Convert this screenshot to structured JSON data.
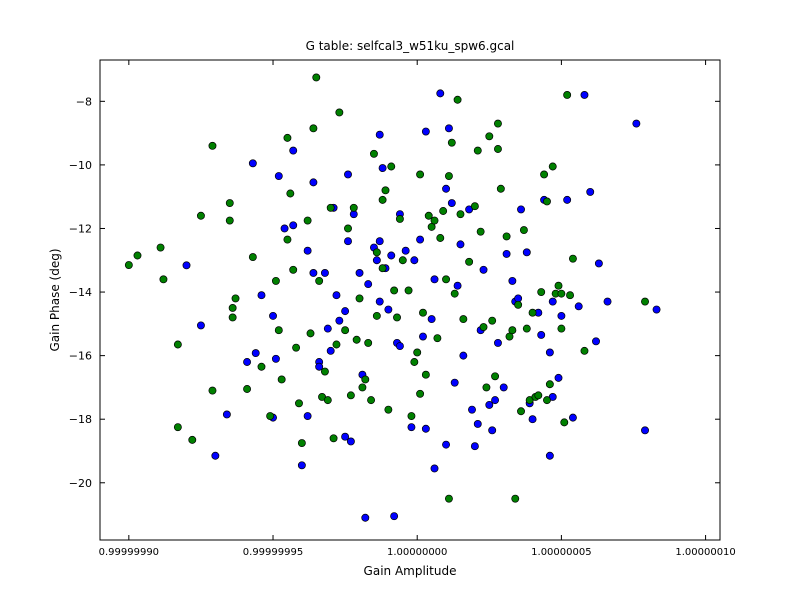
{
  "chart_data": {
    "type": "scatter",
    "title": "G table: selfcal3_w51ku_spw6.gcal",
    "xlabel": "Gain Amplitude",
    "ylabel": "Gain Phase (deg)",
    "xlim": [
      0.99999989,
      1.000000105
    ],
    "ylim": [
      -21.8,
      -6.7
    ],
    "x_ticks": [
      {
        "value": 0.9999999,
        "label": "0.99999990"
      },
      {
        "value": 0.99999995,
        "label": "0.99999995"
      },
      {
        "value": 1.0,
        "label": "1.00000000"
      },
      {
        "value": 1.00000005,
        "label": "1.00000005"
      },
      {
        "value": 1.0000001,
        "label": "1.00000010"
      }
    ],
    "y_ticks": [
      {
        "value": -20,
        "label": "−20"
      },
      {
        "value": -18,
        "label": "−18"
      },
      {
        "value": -16,
        "label": "−16"
      },
      {
        "value": -14,
        "label": "−14"
      },
      {
        "value": -12,
        "label": "−12"
      },
      {
        "value": -10,
        "label": "−10"
      },
      {
        "value": -8,
        "label": "−8"
      }
    ],
    "grid": false,
    "series": [
      {
        "color": "#0000ff",
        "points": [
          [
            0.99999992,
            -13.16
          ],
          [
            0.999999925,
            -15.05
          ],
          [
            0.99999993,
            -19.15
          ],
          [
            0.999999934,
            -17.85
          ],
          [
            0.999999943,
            -9.95
          ],
          [
            0.999999946,
            -14.1
          ],
          [
            0.999999944,
            -15.92
          ],
          [
            0.999999941,
            -16.2
          ],
          [
            0.99999995,
            -17.95
          ],
          [
            0.99999995,
            -14.75
          ],
          [
            0.999999951,
            -16.1
          ],
          [
            0.999999952,
            -10.35
          ],
          [
            0.999999954,
            -12.0
          ],
          [
            0.999999957,
            -11.9
          ],
          [
            0.999999957,
            -9.55
          ],
          [
            0.99999996,
            -19.45
          ],
          [
            0.999999962,
            -17.9
          ],
          [
            0.999999962,
            -12.7
          ],
          [
            0.999999964,
            -10.55
          ],
          [
            0.999999964,
            -13.4
          ],
          [
            0.999999966,
            -16.2
          ],
          [
            0.999999966,
            -16.35
          ],
          [
            0.999999968,
            -13.4
          ],
          [
            0.999999969,
            -15.15
          ],
          [
            0.99999997,
            -15.85
          ],
          [
            0.999999971,
            -11.35
          ],
          [
            0.999999972,
            -14.1
          ],
          [
            0.999999973,
            -14.9
          ],
          [
            0.999999975,
            -18.55
          ],
          [
            0.999999976,
            -10.3
          ],
          [
            0.999999976,
            -12.4
          ],
          [
            0.999999975,
            -14.6
          ],
          [
            0.999999977,
            -18.7
          ],
          [
            0.999999978,
            -11.55
          ],
          [
            0.99999998,
            -13.4
          ],
          [
            0.999999981,
            -16.6
          ],
          [
            0.999999982,
            -21.1
          ],
          [
            0.999999983,
            -13.75
          ],
          [
            0.999999985,
            -12.6
          ],
          [
            0.999999986,
            -13.0
          ],
          [
            0.999999987,
            -14.3
          ],
          [
            0.999999987,
            -9.05
          ],
          [
            0.999999987,
            -12.4
          ],
          [
            0.999999988,
            -10.1
          ],
          [
            0.999999989,
            -13.25
          ],
          [
            0.99999999,
            -14.55
          ],
          [
            0.999999991,
            -12.85
          ],
          [
            0.999999992,
            -21.05
          ],
          [
            0.999999993,
            -15.6
          ],
          [
            0.999999994,
            -15.7
          ],
          [
            0.999999994,
            -11.55
          ],
          [
            0.999999996,
            -12.7
          ],
          [
            0.999999998,
            -18.25
          ],
          [
            0.999999999,
            -13.0
          ],
          [
            1.000000001,
            -12.35
          ],
          [
            1.000000002,
            -15.4
          ],
          [
            1.000000003,
            -18.3
          ],
          [
            1.000000003,
            -8.95
          ],
          [
            1.000000005,
            -14.85
          ],
          [
            1.000000006,
            -19.55
          ],
          [
            1.000000006,
            -13.6
          ],
          [
            1.000000008,
            -7.75
          ],
          [
            1.00000001,
            -18.8
          ],
          [
            1.00000001,
            -10.75
          ],
          [
            1.000000011,
            -8.85
          ],
          [
            1.000000012,
            -11.2
          ],
          [
            1.000000013,
            -16.85
          ],
          [
            1.000000014,
            -13.8
          ],
          [
            1.000000015,
            -12.5
          ],
          [
            1.000000016,
            -16.0
          ],
          [
            1.000000018,
            -11.4
          ],
          [
            1.000000019,
            -17.7
          ],
          [
            1.00000002,
            -18.85
          ],
          [
            1.000000021,
            -18.15
          ],
          [
            1.000000022,
            -15.2
          ],
          [
            1.000000023,
            -13.3
          ],
          [
            1.000000025,
            -17.55
          ],
          [
            1.000000026,
            -18.35
          ],
          [
            1.000000027,
            -17.4
          ],
          [
            1.000000028,
            -15.6
          ],
          [
            1.00000003,
            -17.0
          ],
          [
            1.000000031,
            -12.8
          ],
          [
            1.000000033,
            -13.65
          ],
          [
            1.000000034,
            -14.3
          ],
          [
            1.000000035,
            -14.2
          ],
          [
            1.000000036,
            -11.4
          ],
          [
            1.000000038,
            -12.75
          ],
          [
            1.000000039,
            -17.5
          ],
          [
            1.00000004,
            -18.0
          ],
          [
            1.000000042,
            -14.65
          ],
          [
            1.000000043,
            -15.35
          ],
          [
            1.000000044,
            -11.1
          ],
          [
            1.000000046,
            -19.15
          ],
          [
            1.000000046,
            -15.9
          ],
          [
            1.000000047,
            -17.3
          ],
          [
            1.000000047,
            -14.3
          ],
          [
            1.000000049,
            -16.7
          ],
          [
            1.00000005,
            -14.75
          ],
          [
            1.000000052,
            -11.1
          ],
          [
            1.000000054,
            -17.95
          ],
          [
            1.000000056,
            -14.45
          ],
          [
            1.000000058,
            -7.8
          ],
          [
            1.00000006,
            -10.85
          ],
          [
            1.000000062,
            -15.55
          ],
          [
            1.000000063,
            -13.1
          ],
          [
            1.000000066,
            -14.3
          ],
          [
            1.000000076,
            -8.7
          ],
          [
            1.000000079,
            -18.35
          ],
          [
            1.000000083,
            -14.55
          ]
        ]
      },
      {
        "color": "#008000",
        "points": [
          [
            0.9999999,
            -13.15
          ],
          [
            0.999999903,
            -12.85
          ],
          [
            0.999999911,
            -12.6
          ],
          [
            0.999999912,
            -13.6
          ],
          [
            0.999999917,
            -15.65
          ],
          [
            0.999999917,
            -18.25
          ],
          [
            0.999999922,
            -18.65
          ],
          [
            0.999999925,
            -11.6
          ],
          [
            0.999999929,
            -17.1
          ],
          [
            0.999999929,
            -9.4
          ],
          [
            0.999999935,
            -11.2
          ],
          [
            0.999999935,
            -11.75
          ],
          [
            0.999999936,
            -14.5
          ],
          [
            0.999999936,
            -14.8
          ],
          [
            0.999999937,
            -14.2
          ],
          [
            0.999999941,
            -17.05
          ],
          [
            0.999999943,
            -12.9
          ],
          [
            0.999999946,
            -16.35
          ],
          [
            0.999999949,
            -17.9
          ],
          [
            0.999999951,
            -13.65
          ],
          [
            0.999999952,
            -15.2
          ],
          [
            0.999999953,
            -16.75
          ],
          [
            0.999999955,
            -9.15
          ],
          [
            0.999999955,
            -12.35
          ],
          [
            0.999999956,
            -10.9
          ],
          [
            0.999999957,
            -13.3
          ],
          [
            0.999999958,
            -15.75
          ],
          [
            0.999999959,
            -17.5
          ],
          [
            0.99999996,
            -18.75
          ],
          [
            0.999999962,
            -11.75
          ],
          [
            0.999999963,
            -15.3
          ],
          [
            0.999999964,
            -8.85
          ],
          [
            0.999999965,
            -7.25
          ],
          [
            0.999999966,
            -13.65
          ],
          [
            0.999999967,
            -17.3
          ],
          [
            0.999999968,
            -16.5
          ],
          [
            0.999999969,
            -17.4
          ],
          [
            0.99999997,
            -11.35
          ],
          [
            0.999999971,
            -18.6
          ],
          [
            0.999999972,
            -15.65
          ],
          [
            0.999999973,
            -8.35
          ],
          [
            0.999999975,
            -15.2
          ],
          [
            0.999999976,
            -12.0
          ],
          [
            0.999999977,
            -17.25
          ],
          [
            0.999999978,
            -11.35
          ],
          [
            0.999999979,
            -15.5
          ],
          [
            0.99999998,
            -14.2
          ],
          [
            0.999999981,
            -17.0
          ],
          [
            0.999999982,
            -16.75
          ],
          [
            0.999999983,
            -15.6
          ],
          [
            0.999999984,
            -17.4
          ],
          [
            0.999999985,
            -9.65
          ],
          [
            0.999999986,
            -12.75
          ],
          [
            0.999999986,
            -14.75
          ],
          [
            0.999999988,
            -13.25
          ],
          [
            0.999999988,
            -11.1
          ],
          [
            0.999999989,
            -10.8
          ],
          [
            0.99999999,
            -17.7
          ],
          [
            0.999999991,
            -10.05
          ],
          [
            0.999999992,
            -13.95
          ],
          [
            0.999999993,
            -14.8
          ],
          [
            0.999999994,
            -11.7
          ],
          [
            0.999999995,
            -13.0
          ],
          [
            0.999999997,
            -13.95
          ],
          [
            0.999999998,
            -17.9
          ],
          [
            0.999999999,
            -16.2
          ],
          [
            1.0,
            -15.9
          ],
          [
            1.000000001,
            -10.3
          ],
          [
            1.000000001,
            -17.2
          ],
          [
            1.000000002,
            -14.65
          ],
          [
            1.000000003,
            -16.6
          ],
          [
            1.000000004,
            -11.6
          ],
          [
            1.000000005,
            -11.95
          ],
          [
            1.000000006,
            -11.75
          ],
          [
            1.000000007,
            -15.45
          ],
          [
            1.000000008,
            -12.3
          ],
          [
            1.000000009,
            -11.45
          ],
          [
            1.00000001,
            -13.6
          ],
          [
            1.000000011,
            -10.35
          ],
          [
            1.000000011,
            -20.5
          ],
          [
            1.000000012,
            -9.3
          ],
          [
            1.000000013,
            -14.05
          ],
          [
            1.000000014,
            -7.95
          ],
          [
            1.000000015,
            -11.55
          ],
          [
            1.000000016,
            -14.85
          ],
          [
            1.000000018,
            -13.05
          ],
          [
            1.00000002,
            -11.3
          ],
          [
            1.000000021,
            -9.55
          ],
          [
            1.000000022,
            -12.1
          ],
          [
            1.000000023,
            -15.1
          ],
          [
            1.000000024,
            -17.0
          ],
          [
            1.000000025,
            -9.1
          ],
          [
            1.000000026,
            -14.9
          ],
          [
            1.000000027,
            -16.65
          ],
          [
            1.000000028,
            -8.7
          ],
          [
            1.000000028,
            -9.5
          ],
          [
            1.000000029,
            -10.75
          ],
          [
            1.000000031,
            -12.25
          ],
          [
            1.000000032,
            -15.4
          ],
          [
            1.000000033,
            -15.2
          ],
          [
            1.000000034,
            -20.5
          ],
          [
            1.000000035,
            -14.4
          ],
          [
            1.000000036,
            -17.75
          ],
          [
            1.000000037,
            -12.05
          ],
          [
            1.000000038,
            -15.15
          ],
          [
            1.000000039,
            -17.4
          ],
          [
            1.00000004,
            -14.65
          ],
          [
            1.000000041,
            -17.3
          ],
          [
            1.000000042,
            -17.25
          ],
          [
            1.000000043,
            -14.0
          ],
          [
            1.000000044,
            -10.3
          ],
          [
            1.000000045,
            -17.4
          ],
          [
            1.000000045,
            -11.15
          ],
          [
            1.000000046,
            -16.9
          ],
          [
            1.000000047,
            -10.05
          ],
          [
            1.000000048,
            -14.05
          ],
          [
            1.000000049,
            -13.8
          ],
          [
            1.00000005,
            -15.15
          ],
          [
            1.00000005,
            -14.05
          ],
          [
            1.000000051,
            -18.1
          ],
          [
            1.000000052,
            -7.8
          ],
          [
            1.000000053,
            -14.1
          ],
          [
            1.000000054,
            -12.95
          ],
          [
            1.000000058,
            -15.85
          ],
          [
            1.000000079,
            -14.3
          ]
        ]
      }
    ]
  }
}
